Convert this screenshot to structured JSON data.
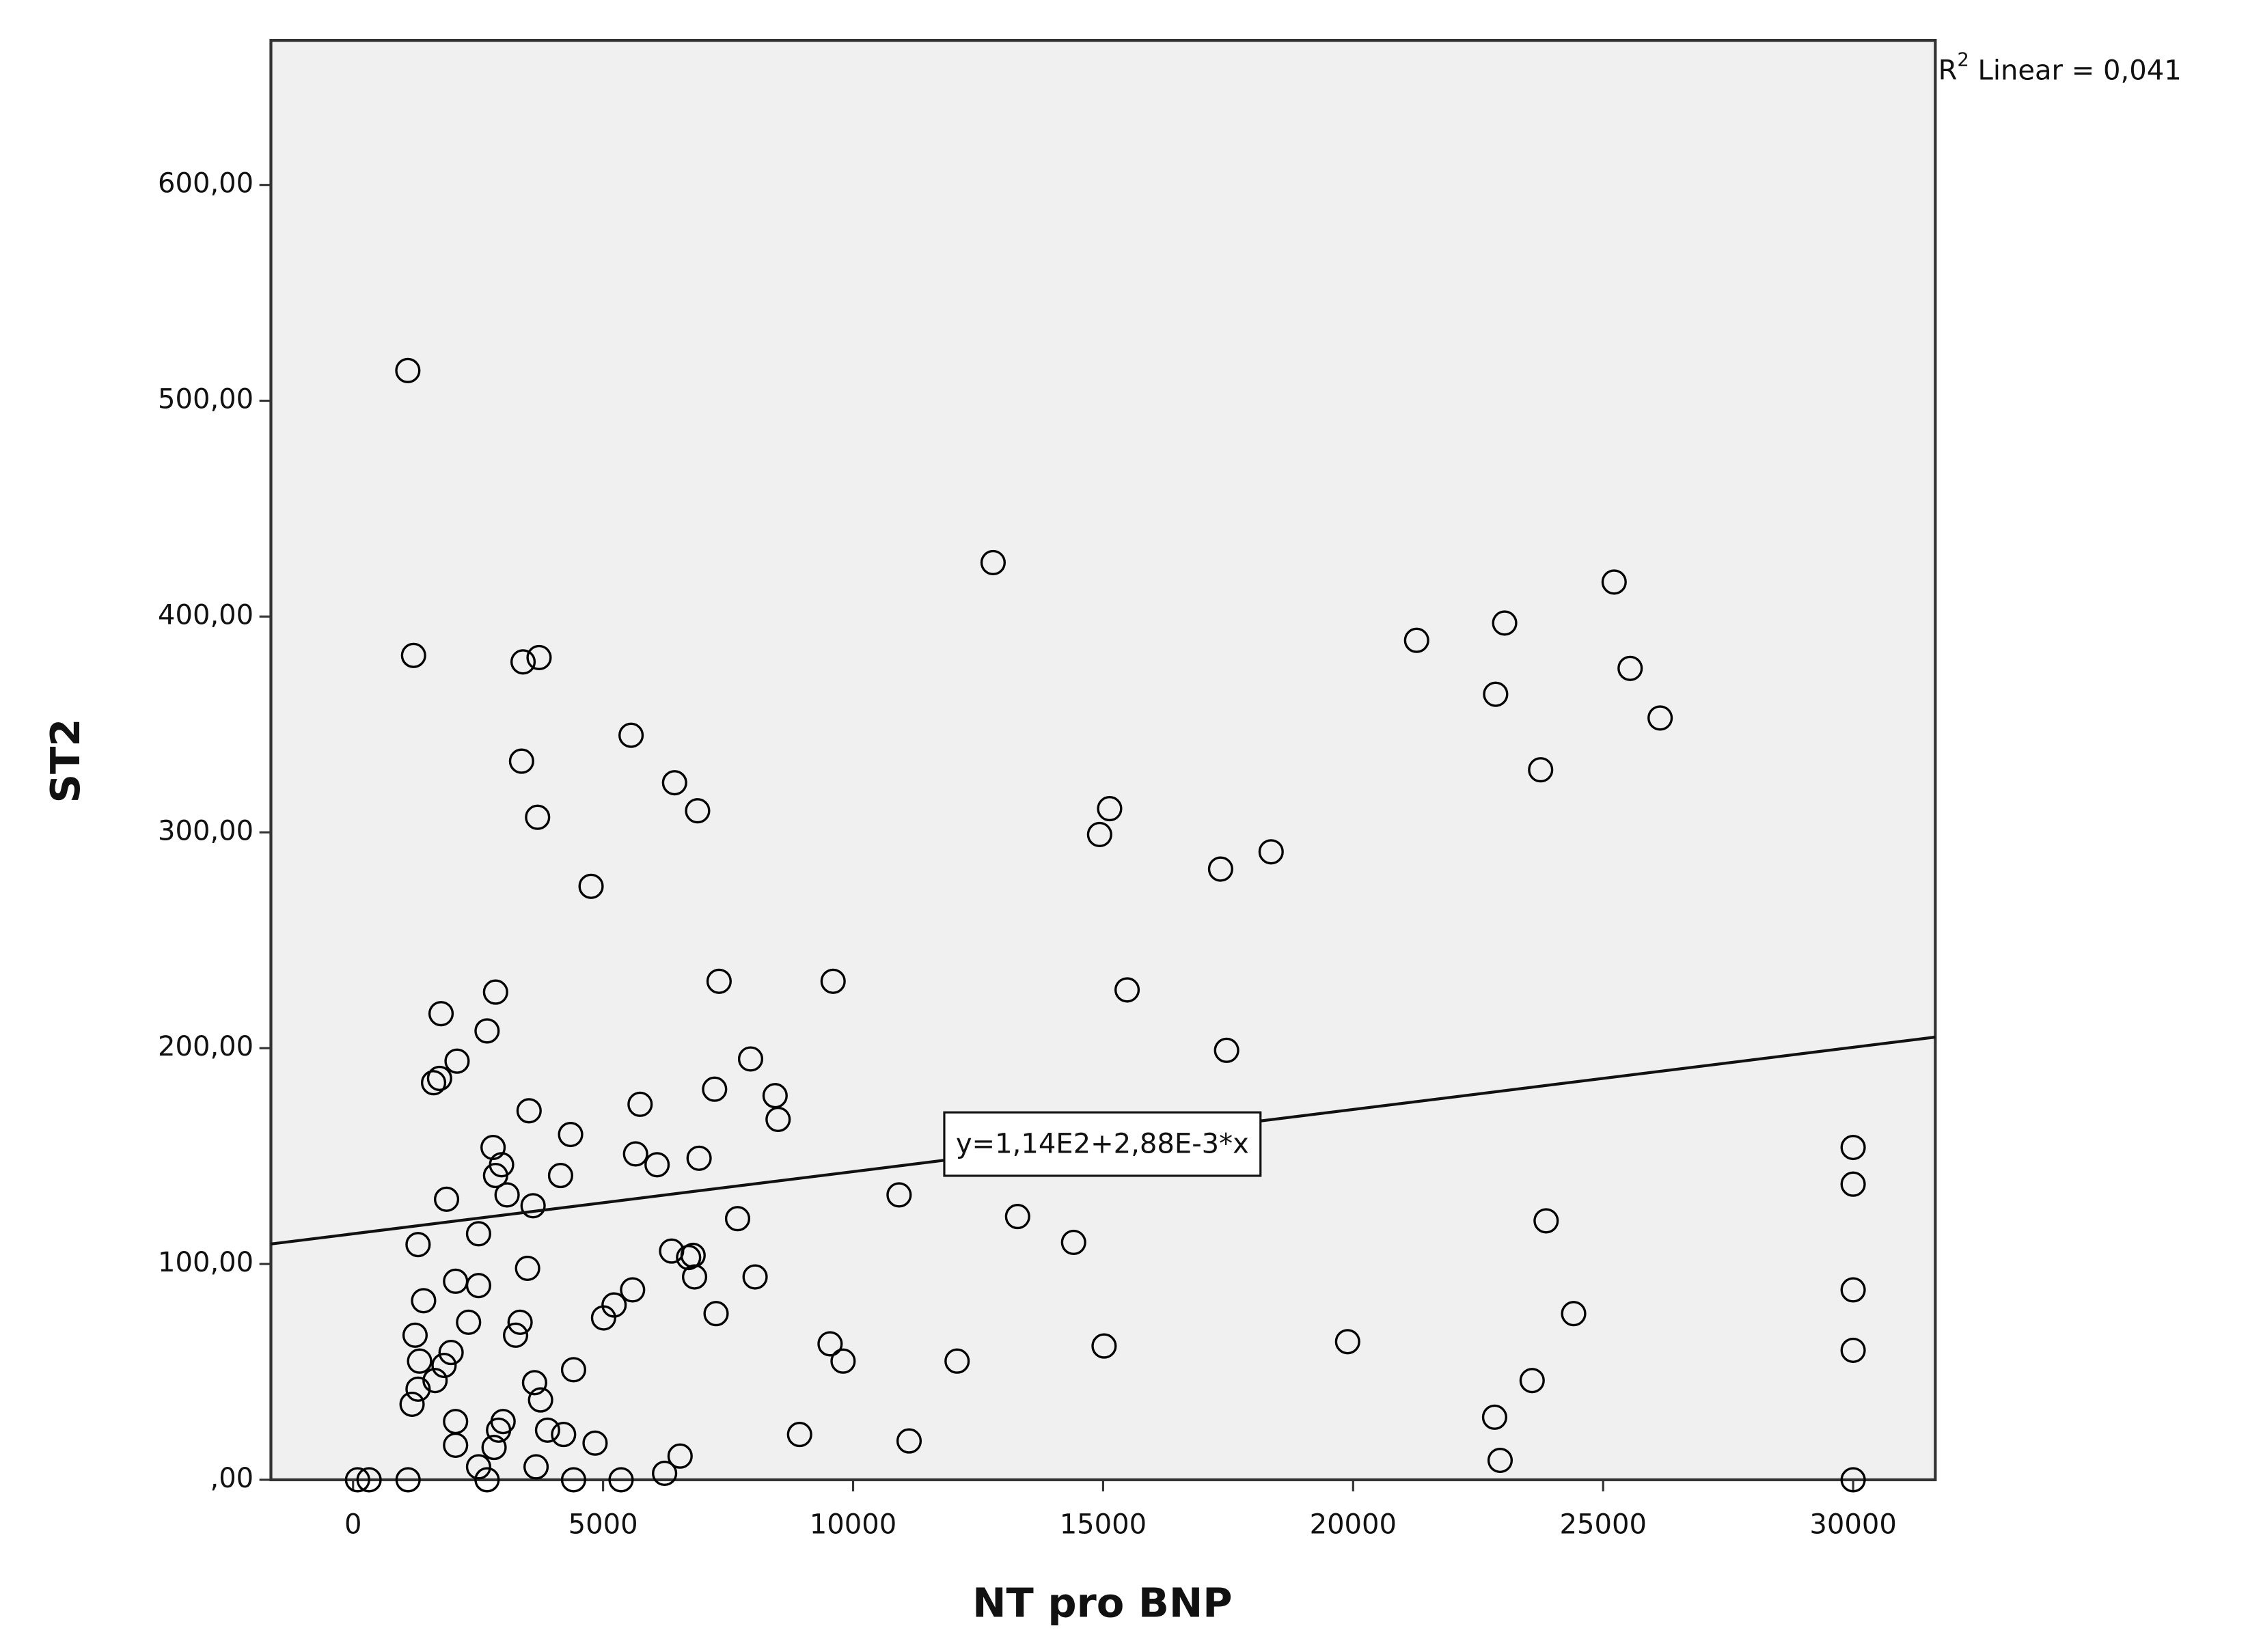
{
  "chart_data": {
    "type": "scatter",
    "x_label": "NT pro BNP",
    "y_label": "ST2",
    "annotation": {
      "base": "R",
      "sup": "2",
      "text": "Linear = 0,041"
    },
    "fit": {
      "intercept": 114,
      "slope": 0.00288,
      "label": "y=1,14E2+2,88E-3*x"
    },
    "xlim": [
      -1643,
      31643
    ],
    "ylim": [
      0,
      667
    ],
    "xticks": [
      0,
      5000,
      10000,
      15000,
      20000,
      25000,
      30000
    ],
    "yticks": [
      {
        "value": 0,
        "label": ",00"
      },
      {
        "value": 100,
        "label": "100,00"
      },
      {
        "value": 200,
        "label": "200,00"
      },
      {
        "value": 300,
        "label": "300,00"
      },
      {
        "value": 400,
        "label": "400,00"
      },
      {
        "value": 500,
        "label": "500,00"
      },
      {
        "value": 600,
        "label": "600,00"
      }
    ],
    "series": [
      {
        "color": "#000000",
        "x": [
          1095,
          1210,
          3400,
          3720,
          3370,
          3690,
          5560,
          6430,
          6890,
          4760,
          12800,
          25220,
          23030,
          21270,
          25540,
          22850,
          26140,
          23750,
          15130,
          14930,
          17350,
          18360,
          15480,
          17470,
          9600,
          7320,
          1760,
          2850,
          2680,
          2080,
          1730,
          1610,
          7950,
          7230,
          8440,
          8500,
          5740,
          3520,
          4350,
          2800,
          5650,
          2970,
          6080,
          6920,
          2850,
          4150,
          3080,
          3600,
          1870,
          10920,
          13290,
          7690,
          14410,
          23860,
          30000,
          30000,
          2510,
          1300,
          6370,
          6710,
          6800,
          6830,
          8040,
          3490,
          2050,
          2510,
          1410,
          5590,
          5220,
          5010,
          7260,
          24410,
          30000,
          2310,
          3340,
          3250,
          1240,
          9540,
          9800,
          12080,
          15020,
          19890,
          30000,
          1960,
          1330,
          1820,
          1640,
          1300,
          1180,
          4410,
          3630,
          3750,
          23580,
          22830,
          2050,
          3000,
          2910,
          3890,
          4210,
          4840,
          2050,
          2820,
          8930,
          11120,
          6540,
          22940,
          2510,
          3660,
          6230,
          90,
          320,
          1100,
          2680,
          4410,
          5360,
          30000
        ],
        "values": [
          514,
          382,
          379,
          381,
          333,
          307,
          345,
          323,
          310,
          275,
          425,
          416,
          397,
          389,
          376,
          364,
          353,
          329,
          311,
          299,
          283,
          291,
          227,
          199,
          231,
          231,
          216,
          226,
          208,
          194,
          186,
          184,
          195,
          181,
          178,
          167,
          174,
          171,
          160,
          154,
          151,
          146,
          146,
          149,
          141,
          141,
          132,
          127,
          130,
          132,
          122,
          121,
          110,
          120,
          154,
          137,
          114,
          109,
          106,
          103,
          104,
          94,
          94,
          98,
          92,
          90,
          83,
          88,
          81,
          75,
          77,
          77,
          88,
          73,
          73,
          67,
          67,
          63,
          55,
          55,
          62,
          64,
          60,
          59,
          55,
          53,
          46,
          42,
          35,
          51,
          45,
          37,
          46,
          29,
          27,
          27,
          23,
          23,
          21,
          17,
          16,
          15,
          21,
          18,
          11,
          9,
          6,
          6,
          3,
          0,
          0,
          0,
          0,
          0,
          0,
          0
        ]
      }
    ]
  }
}
